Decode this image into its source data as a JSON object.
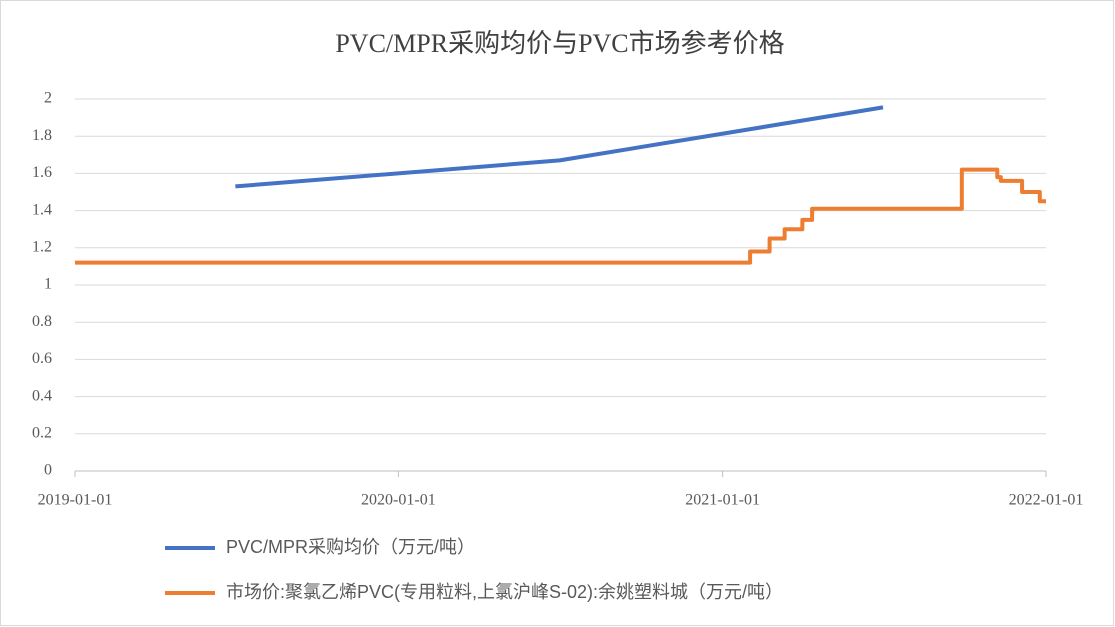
{
  "chart_data": {
    "type": "line",
    "title": "PVC/MPR采购均价与PVC市场参考价格",
    "xlim": [
      "2019-01-01",
      "2022-01-01"
    ],
    "xticks": [
      "2019-01-01",
      "2020-01-01",
      "2021-01-01",
      "2022-01-01"
    ],
    "ylim": [
      0,
      2
    ],
    "yticks": [
      0,
      0.2,
      0.4,
      0.6,
      0.8,
      1,
      1.2,
      1.4,
      1.6,
      1.8,
      2
    ],
    "grid": true,
    "legend": "bottom",
    "series": [
      {
        "name": "PVC/MPR采购均价（万元/吨）",
        "color": "#4472c4",
        "x": [
          "2019-07-01",
          "2020-07-01",
          "2021-07-01"
        ],
        "values": [
          1.53,
          1.67,
          1.955
        ]
      },
      {
        "name": "市场价:聚氯乙烯PVC(专用粒料,上氯沪峰S-02):余姚塑料城（万元/吨）",
        "color": "#ed7d31",
        "step": true,
        "x": [
          "2019-01-01",
          "2021-02-01",
          "2021-02-23",
          "2021-03-12",
          "2021-04-01",
          "2021-04-12",
          "2021-09-28",
          "2021-11-07",
          "2021-11-11",
          "2021-12-05",
          "2021-12-25",
          "2022-01-01"
        ],
        "values": [
          1.12,
          1.18,
          1.25,
          1.3,
          1.35,
          1.41,
          1.62,
          1.58,
          1.56,
          1.5,
          1.45,
          1.45
        ]
      }
    ]
  }
}
